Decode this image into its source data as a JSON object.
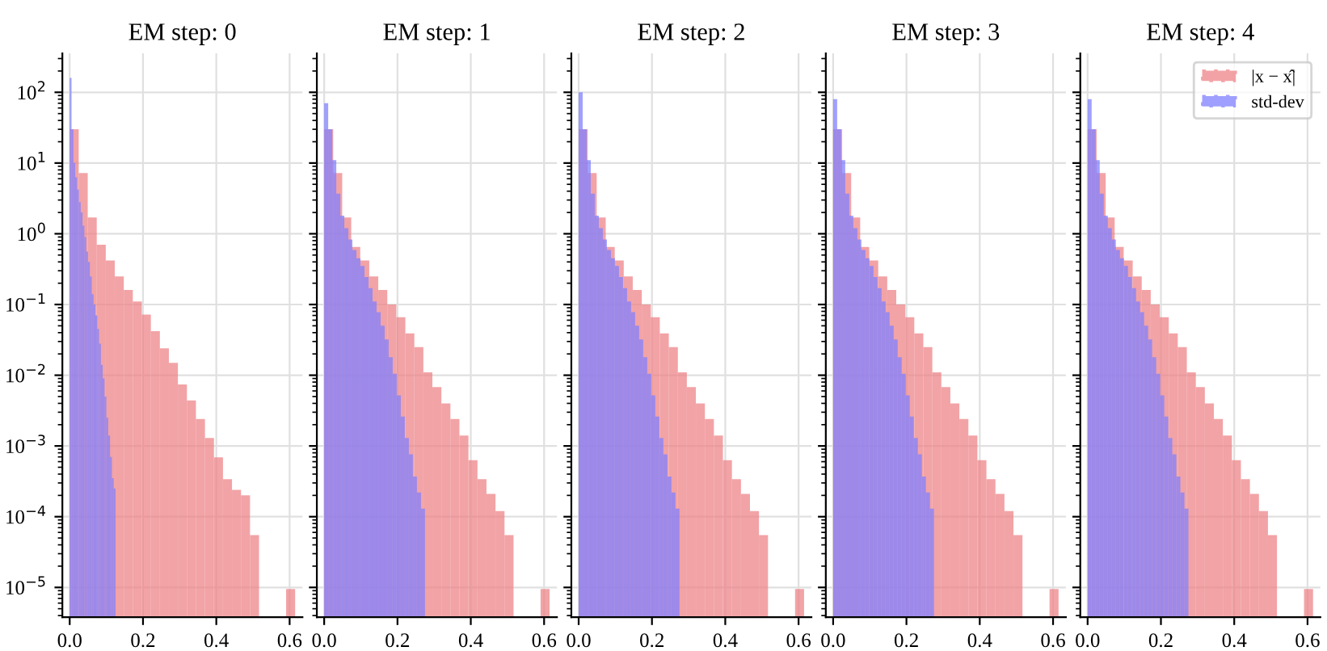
{
  "chart_data": [
    {
      "type": "bar",
      "title": "EM step: 0",
      "xlim": [
        -0.02,
        0.635
      ],
      "ylim": [
        3.8e-06,
        355
      ],
      "log": "y",
      "grid": true,
      "xticks": [
        {
          "value": 0,
          "label": "0.0"
        },
        {
          "value": 0.2,
          "label": "0.2"
        },
        {
          "value": 0.4,
          "label": "0.4"
        },
        {
          "value": 0.6,
          "label": "0.6"
        }
      ],
      "yticks": [
        {
          "value": 1e-05,
          "label": "10$^{−5}$"
        },
        {
          "value": 0.0001,
          "label": "10$^{−4}$"
        },
        {
          "value": 0.001,
          "label": "10$^{−3}$"
        },
        {
          "value": 0.01,
          "label": "10$^{−2}$"
        },
        {
          "value": 0.1,
          "label": "10$^{−1}$"
        },
        {
          "value": 1,
          "label": "10$^{0}$"
        },
        {
          "value": 10,
          "label": "10$^{1}$"
        },
        {
          "value": 100,
          "label": "10$^{2}$"
        }
      ],
      "series": [
        {
          "color": "#ee8488",
          "x": [
            0.0123,
            0.0369,
            0.0615,
            0.0861,
            0.1107,
            0.1353,
            0.1599,
            0.1845,
            0.2091,
            0.2337,
            0.2583,
            0.2829,
            0.3075,
            0.3321,
            0.3567,
            0.3813,
            0.4059,
            0.4305,
            0.4551,
            0.4797,
            0.5043,
            0.5289,
            0.5535,
            0.5781,
            0.6027
          ],
          "values": [
            30,
            7.2,
            1.7,
            0.7,
            0.42,
            0.25,
            0.16,
            0.11,
            0.072,
            0.042,
            0.024,
            0.015,
            0.0074,
            0.0044,
            0.0024,
            0.0013,
            0.00069,
            0.00034,
            0.00024,
            0.0002,
            5.5e-05,
            null,
            null,
            null,
            9.5e-06
          ]
        },
        {
          "color": "#8080ff",
          "x": [
            0.0025,
            0.0075,
            0.0125,
            0.0175,
            0.0225,
            0.0275,
            0.0325,
            0.0375,
            0.0425,
            0.0475,
            0.0525,
            0.0575,
            0.0625,
            0.0675,
            0.0725,
            0.0775,
            0.0825,
            0.0875,
            0.0925,
            0.0975,
            0.1025,
            0.1075,
            0.1125,
            0.1175,
            0.1225
          ],
          "values": [
            160,
            30,
            10,
            6.3,
            4.2,
            2.8,
            2.0,
            1.3,
            0.9,
            0.56,
            0.4,
            0.25,
            0.14,
            0.1,
            0.07,
            0.045,
            0.028,
            0.014,
            0.009,
            0.005,
            0.0025,
            0.0014,
            0.0007,
            0.00035,
            0.00025
          ]
        }
      ]
    },
    {
      "type": "bar",
      "title": "EM step: 1",
      "xlim": [
        -0.02,
        0.635
      ],
      "ylim": [
        3.8e-06,
        355
      ],
      "log": "y",
      "grid": true,
      "tick_labels": "x",
      "xticks": [
        {
          "value": 0,
          "label": "0.0"
        },
        {
          "value": 0.2,
          "label": "0.2"
        },
        {
          "value": 0.4,
          "label": "0.4"
        },
        {
          "value": 0.6,
          "label": "0.6"
        }
      ],
      "yticks": [
        {
          "value": 1e-05,
          "label": null
        },
        {
          "value": 0.0001,
          "label": null
        },
        {
          "value": 0.001,
          "label": null
        },
        {
          "value": 0.01,
          "label": null
        },
        {
          "value": 0.1,
          "label": null
        },
        {
          "value": 1,
          "label": null
        },
        {
          "value": 10,
          "label": null
        },
        {
          "value": 100,
          "label": null
        }
      ],
      "series": [
        {
          "color": "#ee8488",
          "x": [
            0.0123,
            0.0369,
            0.0615,
            0.0861,
            0.1107,
            0.1353,
            0.1599,
            0.1845,
            0.2091,
            0.2337,
            0.2583,
            0.2829,
            0.3075,
            0.3321,
            0.3567,
            0.3813,
            0.4059,
            0.4305,
            0.4551,
            0.4797,
            0.5043,
            0.5289,
            0.5535,
            0.5781,
            0.6027
          ],
          "values": [
            30,
            7.2,
            1.7,
            0.65,
            0.42,
            0.25,
            0.16,
            0.1,
            0.066,
            0.039,
            0.025,
            0.011,
            0.0068,
            0.004,
            0.0024,
            0.0014,
            0.00063,
            0.00034,
            0.00021,
            0.00012,
            5.5e-05,
            null,
            null,
            null,
            9.5e-06
          ]
        },
        {
          "color": "#8080ff",
          "x": [
            0.0055,
            0.0165,
            0.0275,
            0.0385,
            0.0495,
            0.0605,
            0.0715,
            0.0825,
            0.0935,
            0.1045,
            0.1155,
            0.1265,
            0.1375,
            0.1485,
            0.1595,
            0.1705,
            0.1815,
            0.1925,
            0.2035,
            0.2145,
            0.2255,
            0.2365,
            0.2475,
            0.2585,
            0.2695
          ],
          "values": [
            70,
            30,
            11,
            3.7,
            1.8,
            1.2,
            0.83,
            0.59,
            0.45,
            0.35,
            0.245,
            0.17,
            0.11,
            0.078,
            0.05,
            0.032,
            0.018,
            0.0105,
            0.0052,
            0.0026,
            0.0013,
            0.00076,
            0.00037,
            0.00022,
            0.00013
          ]
        }
      ]
    },
    {
      "type": "bar",
      "title": "EM step: 2",
      "xlim": [
        -0.02,
        0.635
      ],
      "ylim": [
        3.8e-06,
        355
      ],
      "log": "y",
      "grid": true,
      "tick_labels": "x",
      "xticks": [
        {
          "value": 0,
          "label": "0.0"
        },
        {
          "value": 0.2,
          "label": "0.2"
        },
        {
          "value": 0.4,
          "label": "0.4"
        },
        {
          "value": 0.6,
          "label": "0.6"
        }
      ],
      "yticks": [
        {
          "value": 1e-05,
          "label": null
        },
        {
          "value": 0.0001,
          "label": null
        },
        {
          "value": 0.001,
          "label": null
        },
        {
          "value": 0.01,
          "label": null
        },
        {
          "value": 0.1,
          "label": null
        },
        {
          "value": 1,
          "label": null
        },
        {
          "value": 10,
          "label": null
        },
        {
          "value": 100,
          "label": null
        }
      ],
      "series": [
        {
          "color": "#ee8488",
          "x": [
            0.0123,
            0.0369,
            0.0615,
            0.0861,
            0.1107,
            0.1353,
            0.1599,
            0.1845,
            0.2091,
            0.2337,
            0.2583,
            0.2829,
            0.3075,
            0.3321,
            0.3567,
            0.3813,
            0.4059,
            0.4305,
            0.4551,
            0.4797,
            0.5043,
            0.5289,
            0.5535,
            0.5781,
            0.6027
          ],
          "values": [
            30,
            7.2,
            1.7,
            0.65,
            0.42,
            0.25,
            0.16,
            0.1,
            0.066,
            0.039,
            0.025,
            0.011,
            0.0068,
            0.004,
            0.0024,
            0.0014,
            0.00063,
            0.00034,
            0.00021,
            0.00012,
            5.5e-05,
            null,
            null,
            null,
            9.5e-06
          ]
        },
        {
          "color": "#8080ff",
          "x": [
            0.0055,
            0.0165,
            0.0275,
            0.0385,
            0.0495,
            0.0605,
            0.0715,
            0.0825,
            0.0935,
            0.1045,
            0.1155,
            0.1265,
            0.1375,
            0.1485,
            0.1595,
            0.1705,
            0.1815,
            0.1925,
            0.2035,
            0.2145,
            0.2255,
            0.2365,
            0.2475,
            0.2585,
            0.2695
          ],
          "values": [
            100,
            30,
            11,
            3.7,
            1.8,
            1.2,
            0.83,
            0.59,
            0.45,
            0.35,
            0.245,
            0.17,
            0.11,
            0.078,
            0.05,
            0.032,
            0.018,
            0.0105,
            0.0052,
            0.0026,
            0.0013,
            0.00076,
            0.00037,
            0.00022,
            0.00013
          ]
        }
      ]
    },
    {
      "type": "bar",
      "title": "EM step: 3",
      "xlim": [
        -0.02,
        0.635
      ],
      "ylim": [
        3.8e-06,
        355
      ],
      "log": "y",
      "grid": true,
      "tick_labels": "x",
      "xticks": [
        {
          "value": 0,
          "label": "0.0"
        },
        {
          "value": 0.2,
          "label": "0.2"
        },
        {
          "value": 0.4,
          "label": "0.4"
        },
        {
          "value": 0.6,
          "label": "0.6"
        }
      ],
      "yticks": [
        {
          "value": 1e-05,
          "label": null
        },
        {
          "value": 0.0001,
          "label": null
        },
        {
          "value": 0.001,
          "label": null
        },
        {
          "value": 0.01,
          "label": null
        },
        {
          "value": 0.1,
          "label": null
        },
        {
          "value": 1,
          "label": null
        },
        {
          "value": 10,
          "label": null
        },
        {
          "value": 100,
          "label": null
        }
      ],
      "series": [
        {
          "color": "#ee8488",
          "x": [
            0.0123,
            0.0369,
            0.0615,
            0.0861,
            0.1107,
            0.1353,
            0.1599,
            0.1845,
            0.2091,
            0.2337,
            0.2583,
            0.2829,
            0.3075,
            0.3321,
            0.3567,
            0.3813,
            0.4059,
            0.4305,
            0.4551,
            0.4797,
            0.5043,
            0.5289,
            0.5535,
            0.5781,
            0.6027
          ],
          "values": [
            30,
            7.2,
            1.7,
            0.65,
            0.42,
            0.25,
            0.16,
            0.1,
            0.066,
            0.039,
            0.025,
            0.011,
            0.0068,
            0.004,
            0.0024,
            0.0014,
            0.00063,
            0.00034,
            0.00021,
            0.00012,
            5.5e-05,
            null,
            null,
            null,
            9.5e-06
          ]
        },
        {
          "color": "#8080ff",
          "x": [
            0.0055,
            0.0165,
            0.0275,
            0.0385,
            0.0495,
            0.0605,
            0.0715,
            0.0825,
            0.0935,
            0.1045,
            0.1155,
            0.1265,
            0.1375,
            0.1485,
            0.1595,
            0.1705,
            0.1815,
            0.1925,
            0.2035,
            0.2145,
            0.2255,
            0.2365,
            0.2475,
            0.2585,
            0.2695
          ],
          "values": [
            80,
            30,
            11,
            3.7,
            1.8,
            1.2,
            0.83,
            0.59,
            0.45,
            0.35,
            0.245,
            0.17,
            0.11,
            0.078,
            0.05,
            0.032,
            0.018,
            0.0105,
            0.0052,
            0.0026,
            0.0013,
            0.00076,
            0.00037,
            0.00022,
            0.00013
          ]
        }
      ]
    },
    {
      "type": "bar",
      "title": "EM step: 4",
      "xlim": [
        -0.02,
        0.635
      ],
      "ylim": [
        3.8e-06,
        355
      ],
      "log": "y",
      "grid": true,
      "legend": "top right",
      "tick_labels": "x",
      "xticks": [
        {
          "value": 0,
          "label": "0.0"
        },
        {
          "value": 0.2,
          "label": "0.2"
        },
        {
          "value": 0.4,
          "label": "0.4"
        },
        {
          "value": 0.6,
          "label": "0.6"
        }
      ],
      "yticks": [
        {
          "value": 1e-05,
          "label": null
        },
        {
          "value": 0.0001,
          "label": null
        },
        {
          "value": 0.001,
          "label": null
        },
        {
          "value": 0.01,
          "label": null
        },
        {
          "value": 0.1,
          "label": null
        },
        {
          "value": 1,
          "label": null
        },
        {
          "value": 10,
          "label": null
        },
        {
          "value": 100,
          "label": null
        }
      ],
      "series": [
        {
          "name": "|x − x̂|",
          "color": "#ee8488",
          "x": [
            0.0123,
            0.0369,
            0.0615,
            0.0861,
            0.1107,
            0.1353,
            0.1599,
            0.1845,
            0.2091,
            0.2337,
            0.2583,
            0.2829,
            0.3075,
            0.3321,
            0.3567,
            0.3813,
            0.4059,
            0.4305,
            0.4551,
            0.4797,
            0.5043,
            0.5289,
            0.5535,
            0.5781,
            0.6027
          ],
          "values": [
            30,
            7.2,
            1.7,
            0.65,
            0.42,
            0.25,
            0.16,
            0.1,
            0.066,
            0.039,
            0.025,
            0.011,
            0.0068,
            0.004,
            0.0024,
            0.0014,
            0.00063,
            0.00034,
            0.00021,
            0.00012,
            5.5e-05,
            null,
            null,
            null,
            9.5e-06
          ]
        },
        {
          "name": "std-dev",
          "color": "#8080ff",
          "x": [
            0.0055,
            0.0165,
            0.0275,
            0.0385,
            0.0495,
            0.0605,
            0.0715,
            0.0825,
            0.0935,
            0.1045,
            0.1155,
            0.1265,
            0.1375,
            0.1485,
            0.1595,
            0.1705,
            0.1815,
            0.1925,
            0.2035,
            0.2145,
            0.2255,
            0.2365,
            0.2475,
            0.2585,
            0.2695
          ],
          "values": [
            80,
            30,
            11,
            3.7,
            1.8,
            1.2,
            0.83,
            0.59,
            0.45,
            0.35,
            0.245,
            0.17,
            0.11,
            0.078,
            0.05,
            0.032,
            0.018,
            0.0105,
            0.0052,
            0.0026,
            0.0013,
            0.00076,
            0.00037,
            0.00022,
            0.00013
          ]
        }
      ]
    }
  ]
}
